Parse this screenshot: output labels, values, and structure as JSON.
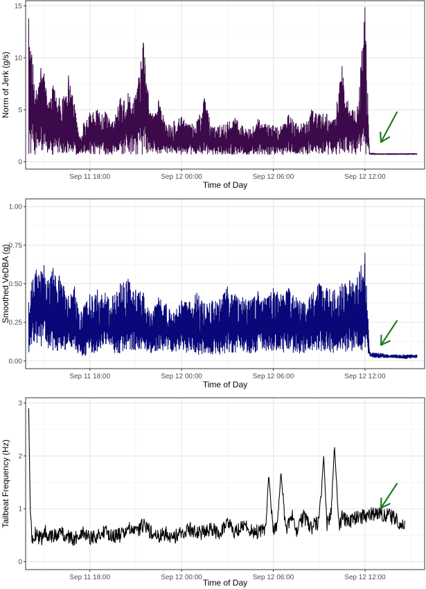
{
  "chart_data": [
    {
      "type": "line",
      "ylabel": "Norm of Jerk (g/s)",
      "xlabel": "Time of Day",
      "x_ticks": [
        "Sep 11 18:00",
        "Sep 12 00:00",
        "Sep 12 06:00",
        "Sep 12 12:00"
      ],
      "x_tick_hours": [
        18,
        24,
        30,
        36
      ],
      "xlim_hours": [
        13.8,
        39.9
      ],
      "y_ticks": [
        0,
        5,
        10,
        15
      ],
      "ylim": [
        -0.7,
        15.5
      ],
      "grid": true,
      "line_color": "#3c0a4a",
      "series": [
        {
          "x_hours": [
            14.0,
            14.2,
            14.5,
            14.8,
            15.0,
            15.3,
            15.6,
            16.0,
            16.3,
            16.6,
            17.0,
            17.3,
            17.6,
            18.0,
            18.5,
            19.0,
            19.5,
            20.0,
            20.5,
            21.0,
            21.5,
            22.0,
            22.5,
            23.0,
            23.5,
            24.0,
            24.5,
            25.0,
            25.5,
            26.0,
            26.5,
            27.0,
            27.5,
            28.0,
            28.5,
            29.0,
            29.5,
            30.0,
            30.5,
            31.0,
            31.5,
            32.0,
            32.5,
            33.0,
            33.5,
            34.0,
            34.5,
            35.0,
            35.5,
            36.0,
            36.3,
            36.7,
            37.0,
            37.5,
            38.0,
            38.5,
            39.0,
            39.4
          ],
          "y_envelope_max": [
            13.8,
            10.3,
            6.8,
            9.0,
            8.5,
            5.6,
            7.3,
            6.1,
            6.3,
            8.3,
            5.5,
            2.4,
            3.7,
            4.7,
            5.0,
            4.8,
            3.8,
            6.1,
            6.6,
            6.4,
            11.5,
            4.4,
            5.9,
            3.5,
            3.9,
            4.3,
            3.5,
            3.9,
            6.1,
            3.3,
            3.5,
            3.8,
            4.2,
            3.4,
            3.1,
            4.1,
            3.6,
            3.5,
            3.4,
            4.5,
            3.7,
            3.7,
            5.0,
            4.6,
            4.6,
            4.0,
            9.2,
            4.8,
            5.2,
            14.9,
            0.9,
            0.8,
            0.8,
            0.8,
            0.8,
            0.8,
            0.8,
            0.8
          ],
          "y_floor": 0.7
        }
      ],
      "annotations": [
        {
          "shape": "arrow",
          "color": "#1f7a1f",
          "points_to_hour": 36.3
        }
      ]
    },
    {
      "type": "line",
      "ylabel": "Smoothed VeDBA (g)",
      "xlabel": "Time of Day",
      "x_ticks": [
        "Sep 11 18:00",
        "Sep 12 00:00",
        "Sep 12 06:00",
        "Sep 12 12:00"
      ],
      "x_tick_hours": [
        18,
        24,
        30,
        36
      ],
      "xlim_hours": [
        13.8,
        39.9
      ],
      "y_ticks": [
        "0.00",
        "0.25",
        "0.50",
        "0.75",
        "1.00"
      ],
      "ylim": [
        -0.05,
        1.05
      ],
      "grid": true,
      "line_color": "#08087a",
      "series": [
        {
          "x_hours": [
            14.0,
            14.2,
            14.5,
            14.8,
            15.0,
            15.3,
            15.6,
            16.0,
            16.3,
            16.6,
            17.0,
            17.3,
            17.6,
            18.0,
            18.5,
            19.0,
            19.5,
            20.0,
            20.5,
            21.0,
            21.5,
            22.0,
            22.5,
            23.0,
            23.5,
            24.0,
            24.5,
            25.0,
            25.5,
            26.0,
            26.5,
            27.0,
            27.5,
            28.0,
            28.5,
            29.0,
            29.5,
            30.0,
            30.5,
            31.0,
            31.5,
            32.0,
            32.5,
            33.0,
            33.5,
            34.0,
            34.5,
            35.0,
            35.5,
            36.0,
            36.3,
            36.7,
            37.0,
            37.5,
            38.0,
            38.5,
            39.0,
            39.4
          ],
          "y_envelope_max": [
            0.38,
            0.51,
            0.59,
            0.58,
            0.62,
            0.52,
            0.6,
            0.55,
            0.48,
            0.42,
            0.48,
            0.3,
            0.35,
            0.43,
            0.46,
            0.44,
            0.42,
            0.5,
            0.53,
            0.46,
            0.44,
            0.3,
            0.41,
            0.37,
            0.31,
            0.39,
            0.38,
            0.44,
            0.37,
            0.39,
            0.4,
            0.48,
            0.43,
            0.41,
            0.39,
            0.45,
            0.4,
            0.47,
            0.43,
            0.47,
            0.41,
            0.38,
            0.43,
            0.5,
            0.47,
            0.46,
            0.5,
            0.52,
            0.54,
            0.7,
            0.06,
            0.05,
            0.05,
            0.04,
            0.04,
            0.04,
            0.04,
            0.04
          ],
          "y_envelope_min": [
            0.01,
            0.1,
            0.1,
            0.09,
            0.1,
            0.08,
            0.05,
            0.07,
            0.06,
            0.06,
            0.08,
            0.04,
            0.03,
            0.04,
            0.06,
            0.1,
            0.05,
            0.05,
            0.06,
            0.07,
            0.08,
            0.05,
            0.06,
            0.06,
            0.05,
            0.08,
            0.04,
            0.04,
            0.04,
            0.04,
            0.04,
            0.05,
            0.04,
            0.06,
            0.05,
            0.06,
            0.05,
            0.06,
            0.05,
            0.06,
            0.05,
            0.05,
            0.06,
            0.05,
            0.05,
            0.05,
            0.06,
            0.05,
            0.06,
            0.07,
            0.03,
            0.02,
            0.02,
            0.02,
            0.02,
            0.01,
            0.02,
            0.02
          ]
        }
      ],
      "annotations": [
        {
          "shape": "arrow",
          "color": "#1f7a1f",
          "points_to_hour": 36.3
        }
      ]
    },
    {
      "type": "line",
      "ylabel": "Tailbeat Frequency (Hz)",
      "xlabel": "Time of Day",
      "x_ticks": [
        "Sep 11 18:00",
        "Sep 12 00:00",
        "Sep 12 06:00",
        "Sep 12 12:00"
      ],
      "x_tick_hours": [
        18,
        24,
        30,
        36
      ],
      "xlim_hours": [
        13.8,
        39.9
      ],
      "y_ticks": [
        0,
        1,
        2,
        3
      ],
      "ylim": [
        -0.15,
        3.1
      ],
      "grid": true,
      "line_color": "#000000",
      "series": [
        {
          "x_hours": [
            14.0,
            14.1,
            14.2,
            14.5,
            14.8,
            15.0,
            15.5,
            16.0,
            16.5,
            17.0,
            17.5,
            18.0,
            18.5,
            19.0,
            19.5,
            20.0,
            20.5,
            21.0,
            21.5,
            22.0,
            22.5,
            23.0,
            23.5,
            24.0,
            24.5,
            25.0,
            25.5,
            26.0,
            26.5,
            27.0,
            27.5,
            28.0,
            28.5,
            29.0,
            29.5,
            29.7,
            30.0,
            30.3,
            30.5,
            30.8,
            31.0,
            31.3,
            31.5,
            32.0,
            32.5,
            33.0,
            33.3,
            33.5,
            33.8,
            34.0,
            34.3,
            34.5,
            35.0,
            35.5,
            36.0,
            36.5,
            37.0,
            37.5,
            38.0,
            38.3,
            38.6
          ],
          "y_values": [
            2.9,
            1.0,
            0.45,
            0.55,
            0.4,
            0.6,
            0.45,
            0.55,
            0.5,
            0.4,
            0.6,
            0.45,
            0.5,
            0.55,
            0.5,
            0.5,
            0.62,
            0.55,
            0.7,
            0.55,
            0.45,
            0.55,
            0.45,
            0.55,
            0.62,
            0.55,
            0.55,
            0.6,
            0.55,
            0.75,
            0.55,
            0.7,
            0.6,
            0.55,
            0.6,
            1.65,
            0.6,
            0.75,
            1.7,
            0.6,
            0.7,
            0.9,
            0.6,
            0.85,
            0.65,
            0.75,
            2.0,
            0.7,
            0.95,
            2.2,
            0.65,
            0.85,
            0.75,
            0.85,
            0.85,
            0.9,
            0.9,
            0.88,
            0.8,
            0.7,
            0.66
          ]
        }
      ],
      "annotations": [
        {
          "shape": "arrow",
          "color": "#1f7a1f",
          "points_to_hour": 36.3
        }
      ]
    }
  ]
}
